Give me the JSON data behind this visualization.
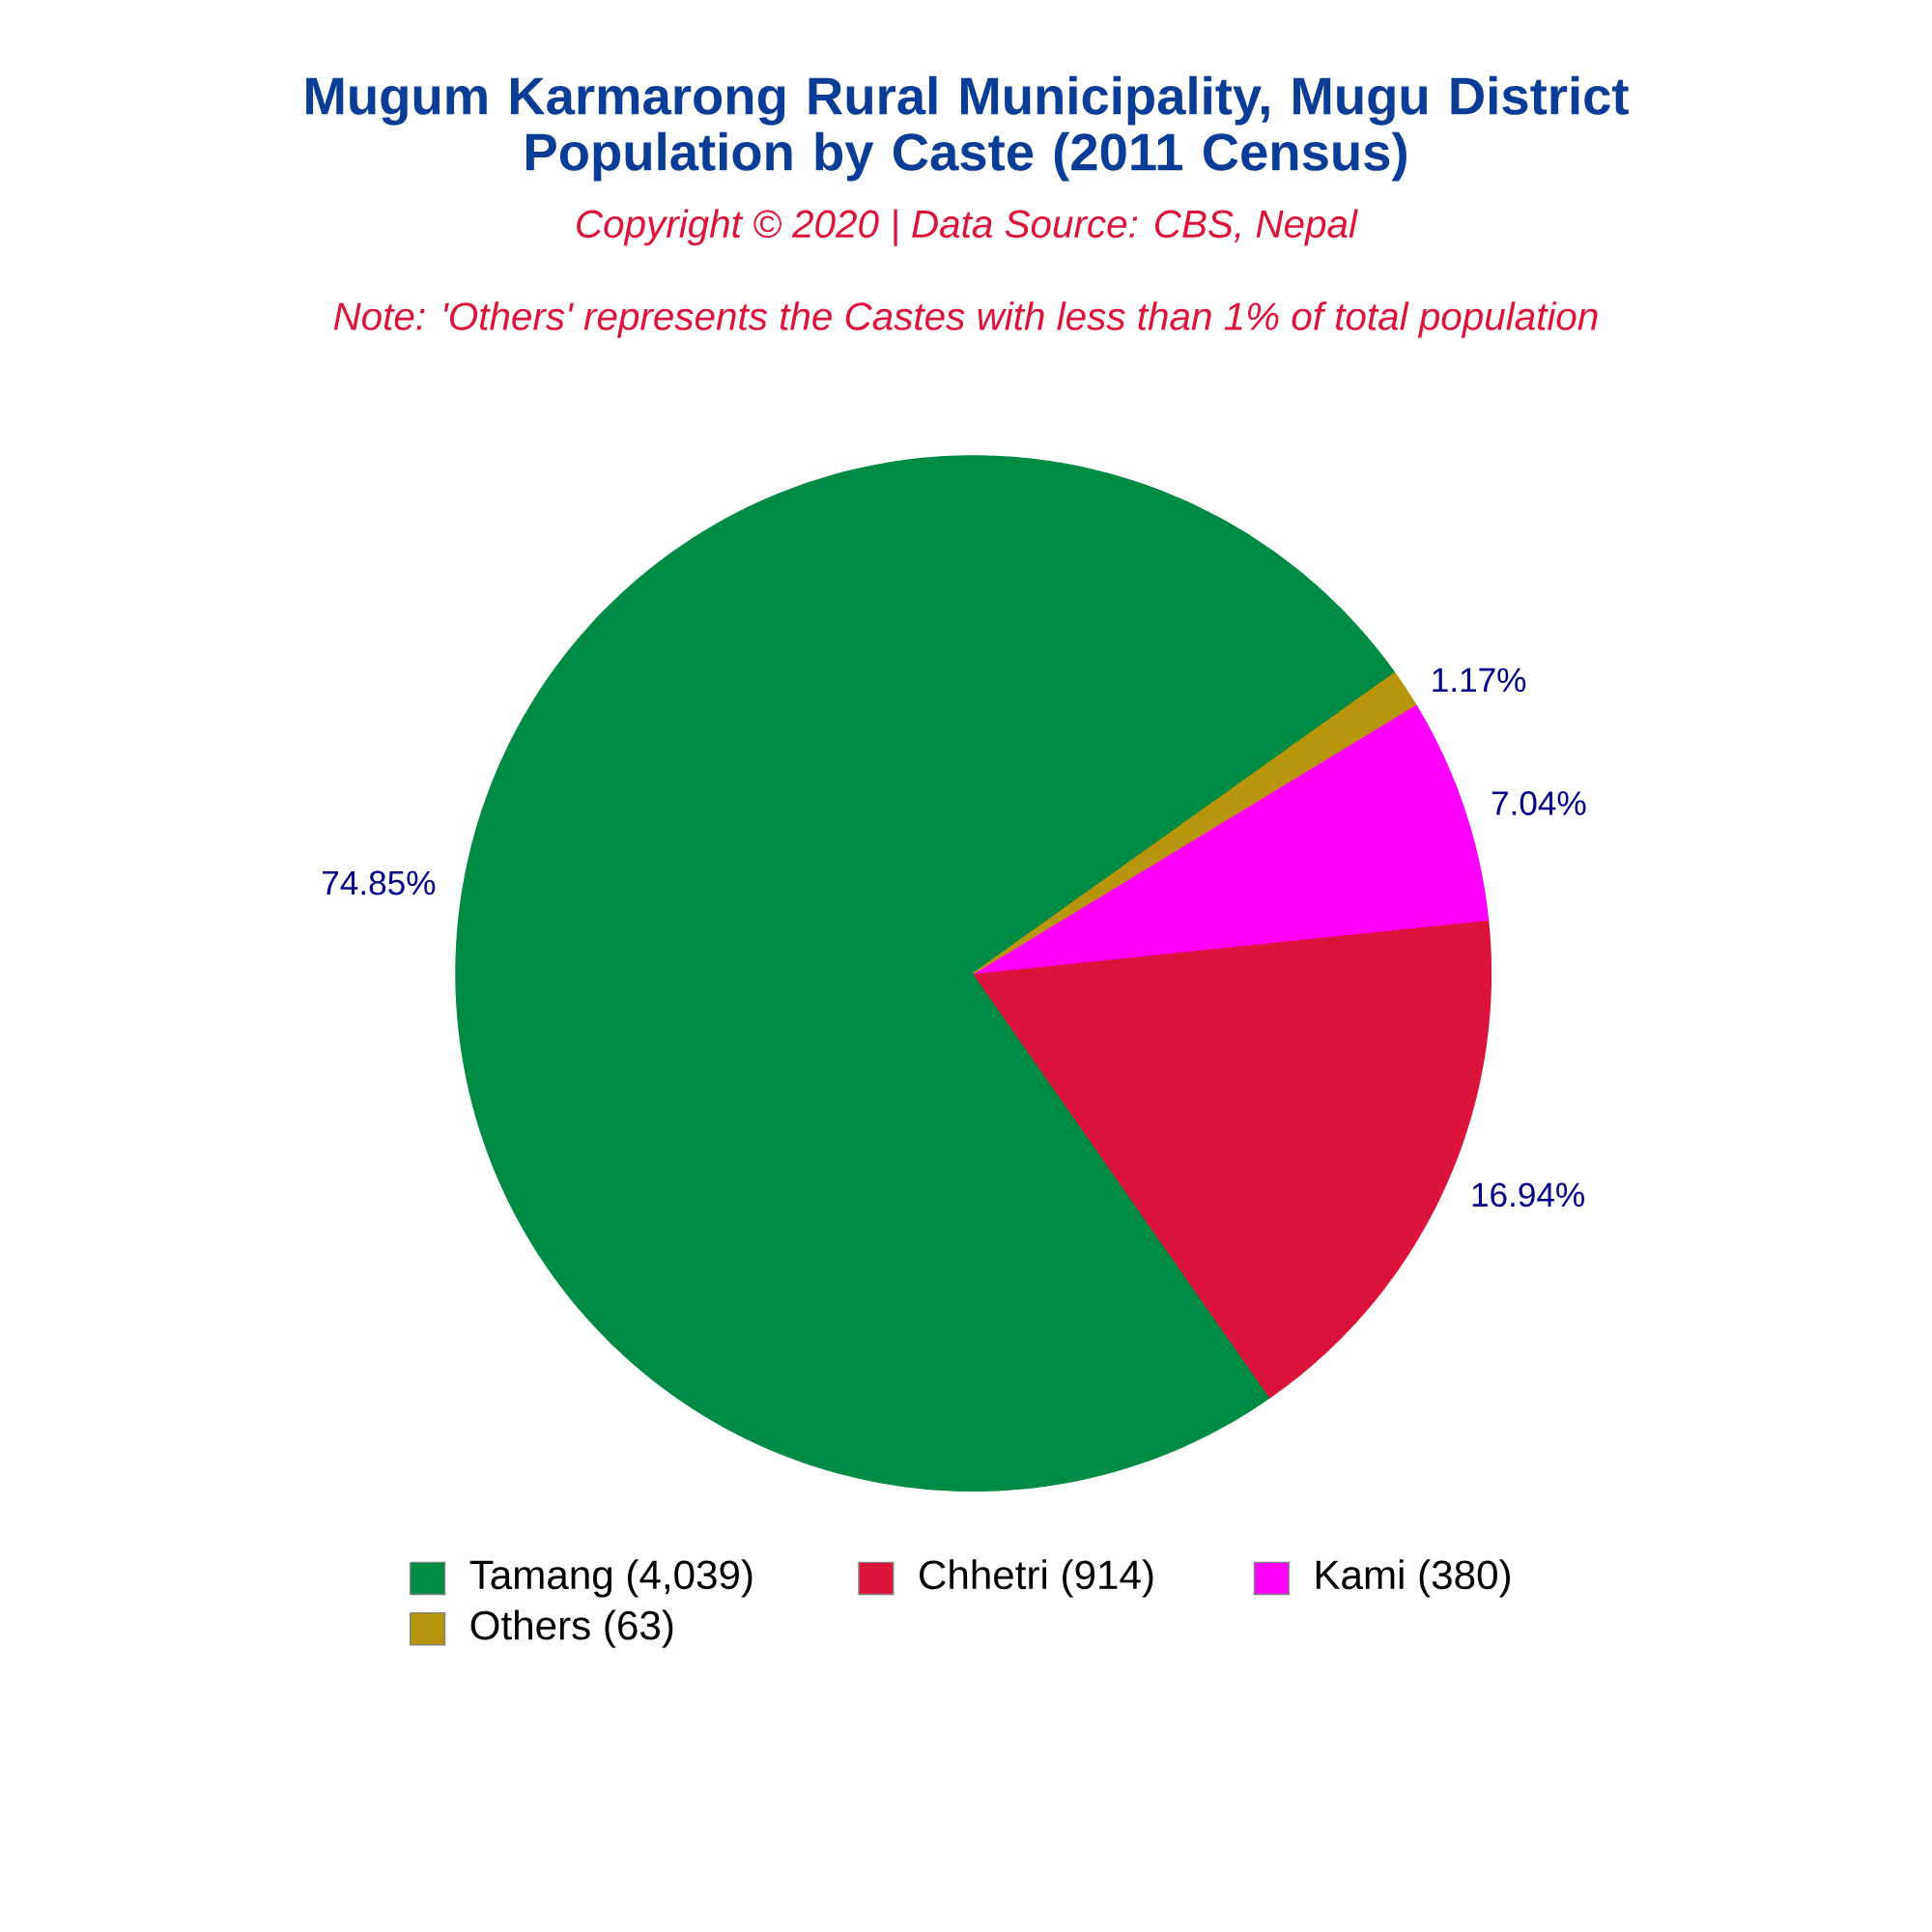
{
  "chart_data": {
    "type": "pie",
    "title": "Mugum Karmarong Rural Municipality, Mugu District\nPopulation by Caste (2011 Census)",
    "subtitle": "Copyright © 2020 | Data Source: CBS, Nepal",
    "annotations": [
      "Note: 'Others' represents the Castes with less than 1% of total population"
    ],
    "categories": [
      "Tamang (4,039)",
      "Chhetri (914)",
      "Kami (380)",
      "Others (63)"
    ],
    "values": [
      74.85,
      16.94,
      7.04,
      1.17
    ],
    "value_labels": [
      "74.85%",
      "16.94%",
      "7.04%",
      "1.17%"
    ],
    "colors": [
      "#008b45",
      "#dc143c",
      "#ff00ff",
      "#b8960b"
    ],
    "legend": "bottom"
  }
}
